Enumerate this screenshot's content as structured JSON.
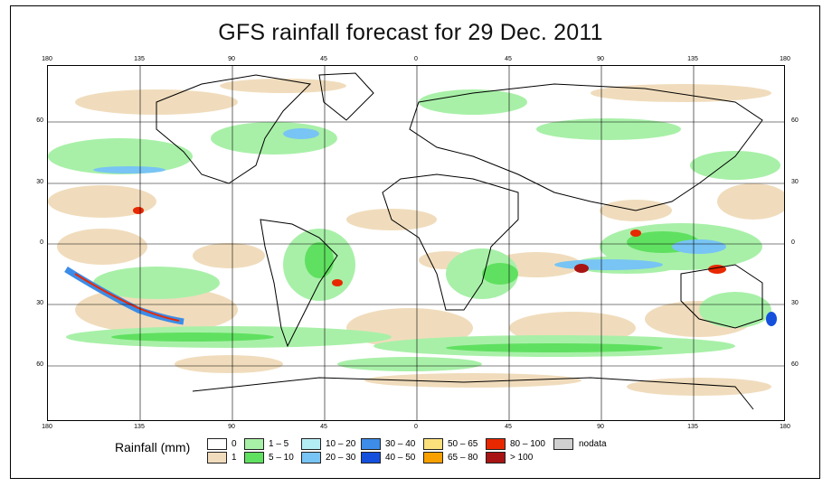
{
  "title": "GFS rainfall forecast for 29 Dec. 2011",
  "axes": {
    "top_ticks": [
      "180",
      "135",
      "90",
      "45",
      "0",
      "45",
      "90",
      "135",
      "180"
    ],
    "bottom_ticks": [
      "180",
      "135",
      "90",
      "45",
      "0",
      "45",
      "90",
      "135",
      "180"
    ],
    "left_ticks": [
      "60",
      "30",
      "0",
      "30",
      "60"
    ],
    "right_ticks": [
      "60",
      "30",
      "0",
      "30",
      "60"
    ]
  },
  "legend": {
    "title": "Rainfall (mm)",
    "items": [
      {
        "label": "0",
        "color": "#ffffff"
      },
      {
        "label": "1",
        "color": "#f0dcbc"
      },
      {
        "label": "1 – 5",
        "color": "#a8f0a8"
      },
      {
        "label": "5 – 10",
        "color": "#60e060"
      },
      {
        "label": "10 – 20",
        "color": "#b4ecf4"
      },
      {
        "label": "20 – 30",
        "color": "#78c4f4"
      },
      {
        "label": "30 – 40",
        "color": "#3c8ce8"
      },
      {
        "label": "40 – 50",
        "color": "#1450dc"
      },
      {
        "label": "50 – 65",
        "color": "#fce07c"
      },
      {
        "label": "65 – 80",
        "color": "#f8a000"
      },
      {
        "label": "80 – 100",
        "color": "#e82800"
      },
      {
        "label": "> 100",
        "color": "#a81414"
      },
      {
        "label": "nodata",
        "color": "#d0d0d0"
      }
    ]
  }
}
